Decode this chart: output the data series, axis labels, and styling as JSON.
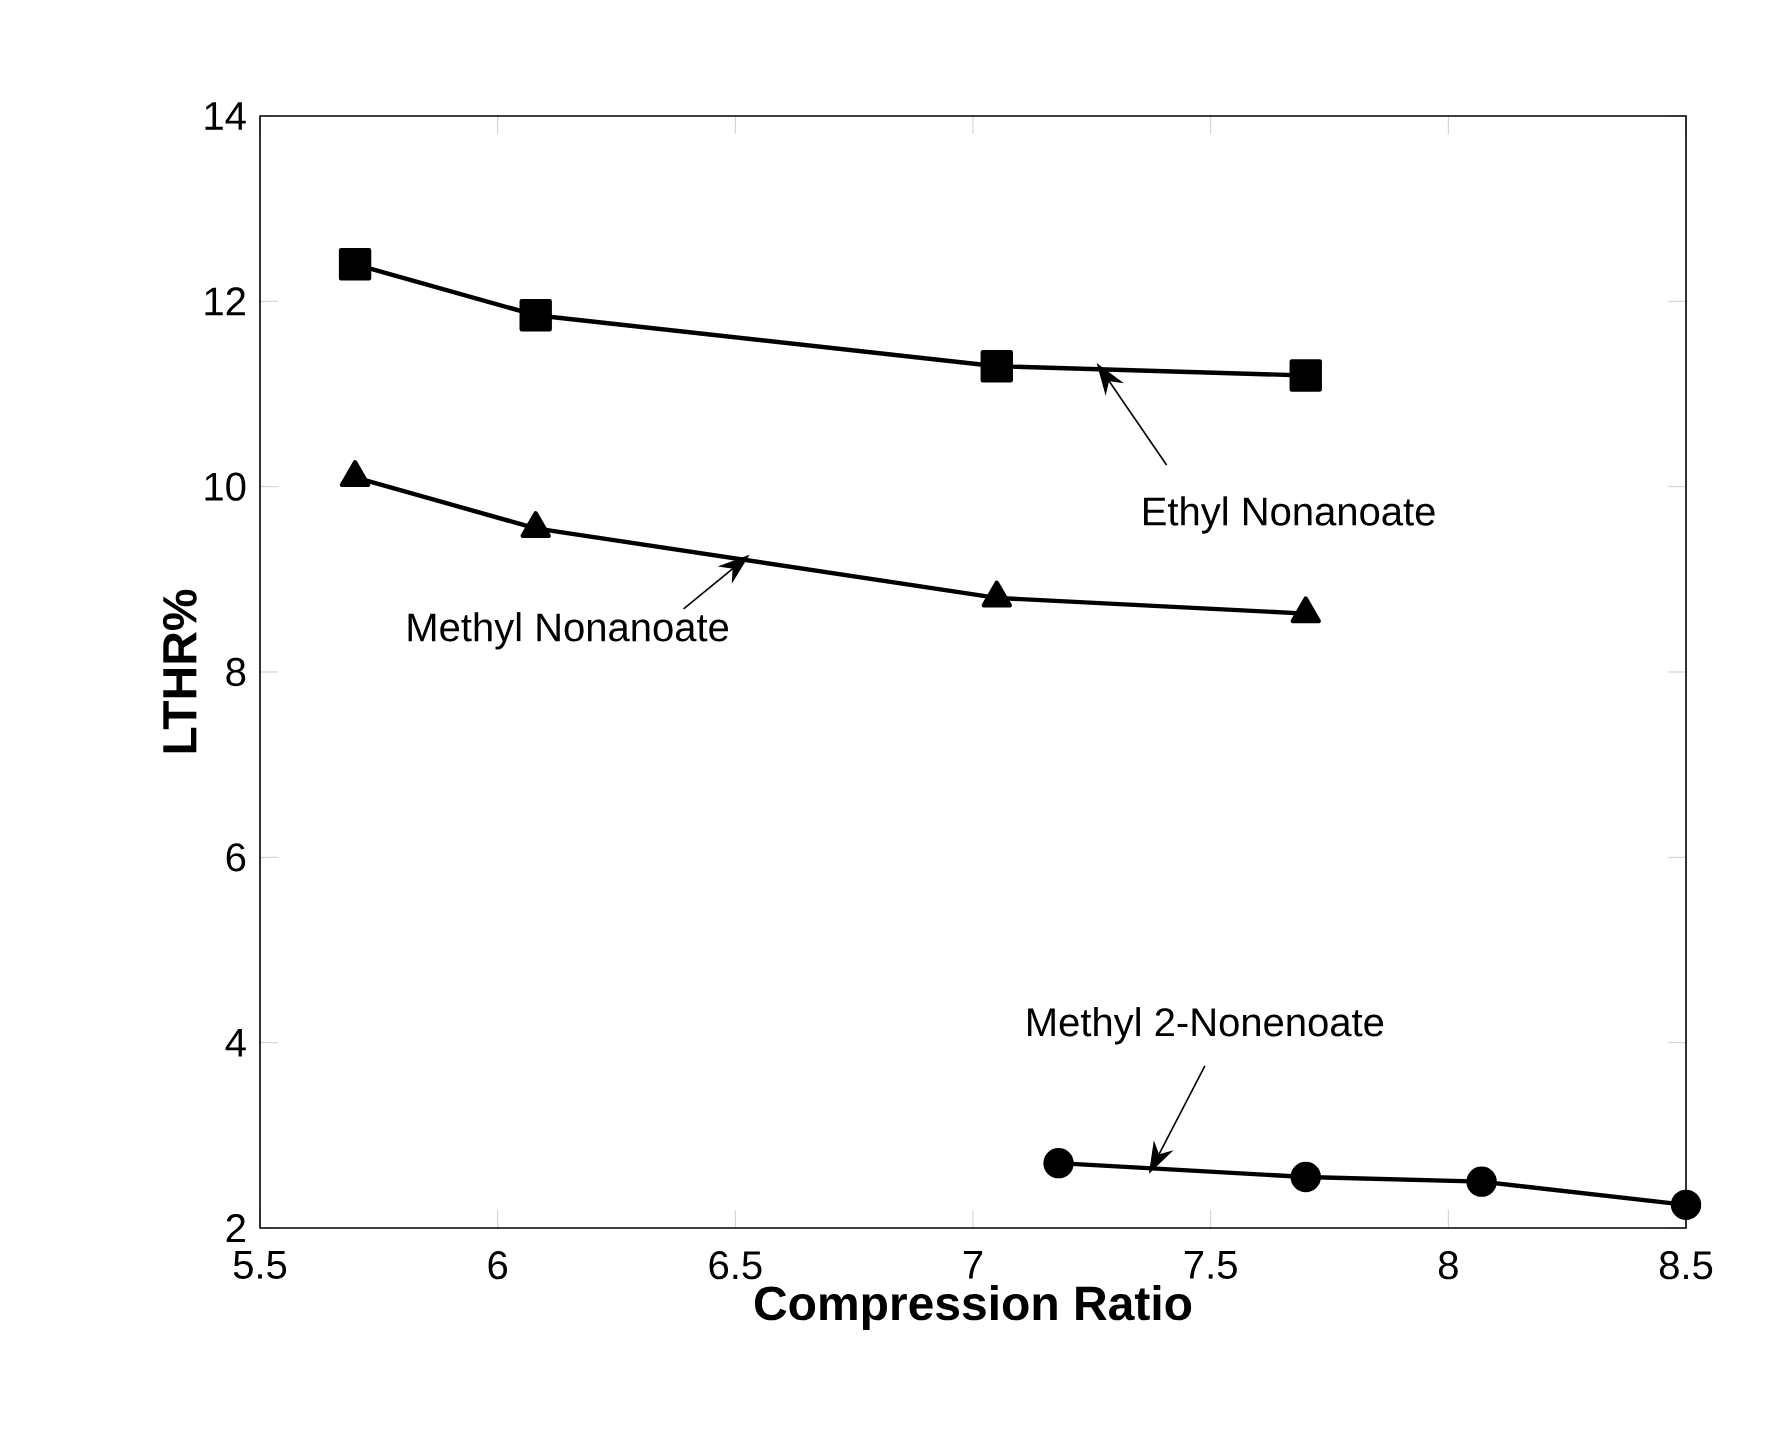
{
  "chart_data": {
    "type": "line",
    "xlabel": "Compression Ratio",
    "ylabel": "LTHR%",
    "xlim": [
      5.5,
      8.5
    ],
    "xticks": [
      5.5,
      6,
      6.5,
      7,
      7.5,
      8,
      8.5
    ],
    "ylim": [
      2,
      14
    ],
    "yticks": [
      2,
      4,
      6,
      8,
      10,
      12,
      14
    ],
    "grid": false,
    "series": [
      {
        "color": "#000000",
        "marker": "square",
        "x": [
          5.7,
          6.08,
          7.05,
          7.7
        ],
        "values": [
          12.4,
          11.85,
          11.3,
          11.2
        ]
      },
      {
        "color": "#000000",
        "marker": "triangle",
        "x": [
          5.7,
          6.08,
          7.05,
          7.7
        ],
        "values": [
          10.1,
          9.55,
          8.8,
          8.63
        ]
      },
      {
        "color": "#000000",
        "marker": "circle",
        "x": [
          7.18,
          7.7,
          8.07,
          8.5
        ],
        "values": [
          2.7,
          2.55,
          2.5,
          2.25
        ]
      }
    ],
    "annotations": [
      {
        "text": "Ethyl Nonanoate",
        "x": 7.26,
        "y": 11.27
      },
      {
        "text": "Methyl Nonanoate",
        "x": 6.53,
        "y": 9.2
      },
      {
        "text": "Methyl 2-Nonenoate",
        "x": 7.37,
        "y": 2.65
      }
    ]
  }
}
